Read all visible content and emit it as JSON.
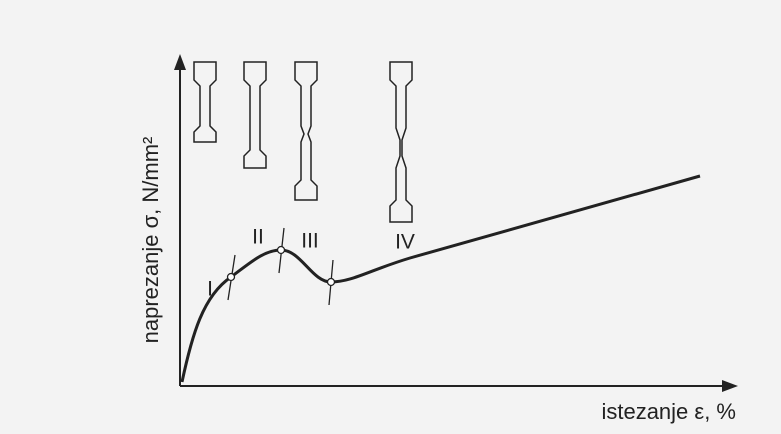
{
  "y_axis_label": "naprezanje σ, N/mm²",
  "x_axis_label": "istezanje ε, %",
  "regions": [
    "I",
    "II",
    "III",
    "IV"
  ]
}
